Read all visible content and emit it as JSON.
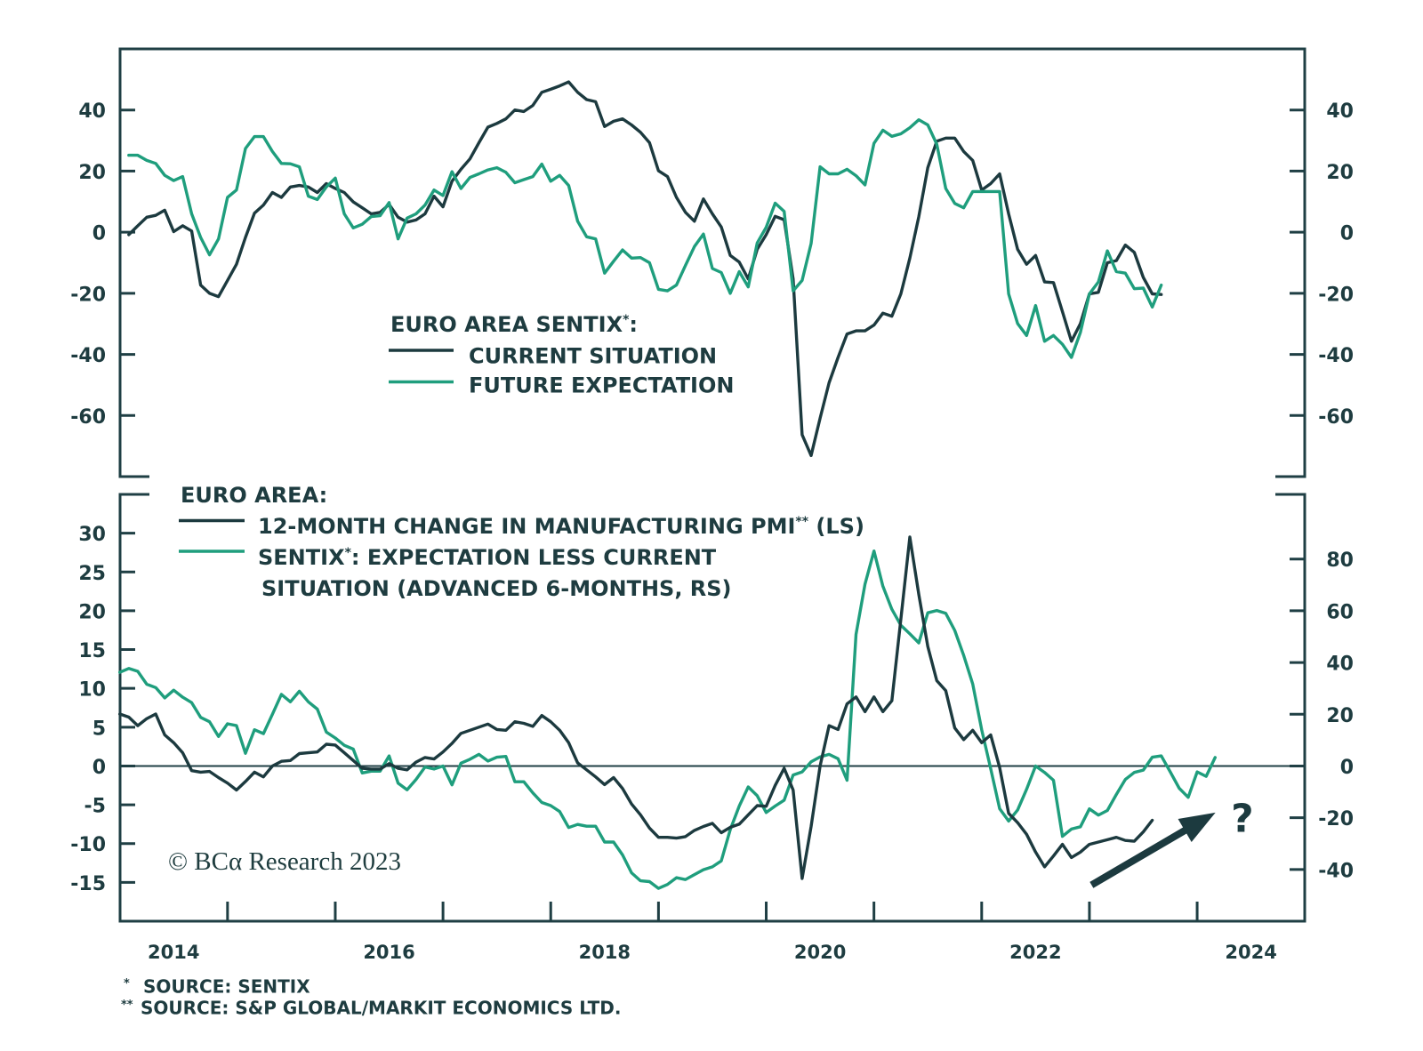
{
  "chart_data": [
    {
      "type": "line",
      "panel": "top",
      "title": {
        "main": "EURO AREA SENTIX",
        "mark": "*",
        "suffix": ":"
      },
      "frequency": "monthly",
      "legend_placement": "center",
      "y_left": {
        "range": [
          -80,
          60
        ],
        "ticks": [
          40,
          20,
          0,
          -20,
          -40,
          -60
        ]
      },
      "y_right": {
        "range": [
          -80,
          60
        ],
        "ticks": [
          40,
          20,
          0,
          -20,
          -40,
          -60
        ]
      },
      "series": [
        {
          "name": "CURRENT SITUATION",
          "color": "#1c3a3f",
          "axis": "left",
          "start": "2014-01",
          "values": [
            -0.8,
            2.1,
            4.9,
            5.5,
            7.2,
            0.2,
            2.1,
            0.4,
            -17.3,
            -20.0,
            -21.1,
            -15.8,
            -10.5,
            -1.7,
            6.2,
            8.9,
            13.0,
            11.4,
            14.8,
            15.3,
            14.8,
            13.0,
            15.9,
            14.3,
            13.0,
            9.9,
            8.0,
            6.0,
            6.5,
            9.1,
            4.9,
            3.3,
            4.0,
            6.0,
            11.8,
            8.3,
            16.7,
            20.6,
            24.0,
            29.3,
            34.4,
            35.6,
            37.1,
            40.0,
            39.5,
            41.5,
            45.8,
            46.8,
            47.9,
            49.2,
            45.8,
            43.4,
            42.7,
            34.6,
            36.3,
            37.1,
            35.1,
            32.7,
            29.3,
            20.1,
            18.2,
            11.4,
            6.5,
            3.6,
            10.9,
            6.0,
            1.7,
            -7.6,
            -9.8,
            -15.3,
            -5.6,
            -0.8,
            5.2,
            4.1,
            -15.3,
            -66.3,
            -73.1,
            -60.9,
            -49.3,
            -41.0,
            -33.3,
            -32.3,
            -32.3,
            -30.4,
            -26.5,
            -27.5,
            -20.2,
            -8.5,
            5.1,
            21.1,
            29.8,
            30.8,
            30.8,
            26.4,
            23.5,
            13.8,
            15.9,
            19.1,
            6.0,
            -5.6,
            -10.5,
            -7.6,
            -16.3,
            -16.5,
            -26.0,
            -35.7,
            -29.9,
            -20.2,
            -19.7,
            -10.0,
            -9.3,
            -4.2,
            -6.6,
            -14.8,
            -20.2,
            -20.4
          ]
        },
        {
          "name": "FUTURE EXPECTATION",
          "color": "#1f9e7d",
          "axis": "left",
          "start": "2014-01",
          "values": [
            25.2,
            25.2,
            23.5,
            22.5,
            18.6,
            16.9,
            18.2,
            6.0,
            -1.7,
            -7.4,
            -2.2,
            11.4,
            13.8,
            27.4,
            31.3,
            31.3,
            26.4,
            22.5,
            22.4,
            21.4,
            11.8,
            10.7,
            14.8,
            17.7,
            6.0,
            1.4,
            2.6,
            5.1,
            5.4,
            9.7,
            -2.2,
            4.6,
            6.0,
            8.9,
            13.8,
            12.0,
            19.8,
            14.3,
            17.9,
            19.1,
            20.4,
            21.1,
            19.6,
            16.2,
            17.2,
            18.2,
            22.3,
            16.7,
            18.6,
            15.3,
            3.6,
            -1.5,
            -2.2,
            -13.4,
            -9.5,
            -5.8,
            -8.5,
            -8.3,
            -10.0,
            -18.7,
            -19.2,
            -17.3,
            -10.9,
            -4.7,
            -0.6,
            -11.9,
            -13.2,
            -20.0,
            -12.9,
            -17.9,
            -3.5,
            1.6,
            9.5,
            6.8,
            -19.2,
            -15.8,
            -3.7,
            21.4,
            19.1,
            19.1,
            20.6,
            18.5,
            15.5,
            29.1,
            33.4,
            31.4,
            32.2,
            34.2,
            36.8,
            35.1,
            28.8,
            14.3,
            9.4,
            8.0,
            13.3,
            13.3,
            13.3,
            13.3,
            -20.2,
            -29.9,
            -33.8,
            -24.0,
            -35.7,
            -33.8,
            -36.7,
            -41.0,
            -32.8,
            -20.2,
            -16.3,
            -6.1,
            -12.9,
            -13.4,
            -18.5,
            -18.3,
            -24.5,
            -17.3
          ]
        }
      ]
    },
    {
      "type": "line",
      "panel": "bottom",
      "title": {
        "main": "EURO AREA:"
      },
      "frequency": "monthly",
      "legend_placement": "top-left",
      "reference_line": 0,
      "y_left": {
        "range": [
          -20,
          35
        ],
        "ticks": [
          30,
          25,
          20,
          15,
          10,
          5,
          0,
          -5,
          -10,
          -15
        ]
      },
      "y_right": {
        "range": [
          -60,
          105
        ],
        "ticks": [
          80,
          60,
          40,
          20,
          0,
          -20,
          -40
        ]
      },
      "series": [
        {
          "name": "12-MONTH CHANGE IN MANUFACTURING PMI** (LS)",
          "label": {
            "main": "12-MONTH CHANGE IN MANUFACTURING PMI",
            "mark": "**",
            "suffix": " (LS)"
          },
          "color": "#1c3a3f",
          "axis": "left",
          "start": "2013-12",
          "values": [
            6.7,
            6.3,
            5.2,
            6.1,
            6.7,
            4.0,
            3.0,
            1.7,
            -0.6,
            -0.8,
            -0.7,
            -1.5,
            -2.2,
            -3.1,
            -2.0,
            -0.8,
            -1.4,
            0.0,
            0.6,
            0.7,
            1.6,
            1.7,
            1.8,
            2.8,
            2.7,
            1.7,
            0.7,
            -0.3,
            -0.4,
            -0.4,
            0.3,
            -0.3,
            -0.5,
            0.5,
            1.1,
            0.9,
            1.8,
            2.9,
            4.2,
            4.6,
            5.0,
            5.4,
            4.7,
            4.6,
            5.7,
            5.5,
            5.1,
            6.5,
            5.7,
            4.6,
            3.0,
            0.4,
            -0.5,
            -1.4,
            -2.4,
            -1.5,
            -2.9,
            -4.9,
            -6.3,
            -8.0,
            -9.2,
            -9.2,
            -9.3,
            -9.1,
            -8.3,
            -7.8,
            -7.4,
            -8.6,
            -7.9,
            -7.5,
            -6.3,
            -5.1,
            -5.2,
            -2.5,
            -0.3,
            -3.1,
            -14.5,
            -7.8,
            0.0,
            5.2,
            4.7,
            8.0,
            8.9,
            7.0,
            8.9,
            7.0,
            8.4,
            18.9,
            29.5,
            22.1,
            15.4,
            11.0,
            9.7,
            4.9,
            3.4,
            4.6,
            3.0,
            4.0,
            -0.2,
            -6.1,
            -7.3,
            -8.8,
            -11.1,
            -13.0,
            -11.6,
            -10.1,
            -11.8,
            -11.1,
            -10.1,
            -9.8,
            -9.5,
            -9.2,
            -9.6,
            -9.7,
            -8.5,
            -7.0
          ]
        },
        {
          "name": "SENTIX*: EXPECTATION LESS CURRENT SITUATION (ADVANCED 6-MONTHS, RS)",
          "label": {
            "main": "SENTIX",
            "mark": "*",
            "suffix": ": EXPECTATION LESS CURRENT",
            "line2": "SITUATION (ADVANCED 6-MONTHS, RS)"
          },
          "color": "#1f9e7d",
          "axis": "right",
          "start": "2013-12",
          "values": [
            36.2,
            37.7,
            36.6,
            31.6,
            30.3,
            26.3,
            29.3,
            26.6,
            24.5,
            18.8,
            17.1,
            11.4,
            16.3,
            15.6,
            4.9,
            14.0,
            12.5,
            20.0,
            27.7,
            24.8,
            28.9,
            24.8,
            22.0,
            13.1,
            10.8,
            8.0,
            6.5,
            -2.7,
            -2.0,
            -2.0,
            3.9,
            -6.6,
            -9.2,
            -5.2,
            -0.4,
            -1.2,
            0.0,
            -7.3,
            1.1,
            2.6,
            4.5,
            1.9,
            3.4,
            3.7,
            -6.1,
            -6.1,
            -10.4,
            -14.1,
            -15.3,
            -17.6,
            -23.8,
            -22.6,
            -23.3,
            -23.3,
            -29.4,
            -29.4,
            -34.4,
            -41.3,
            -44.4,
            -44.7,
            -47.3,
            -45.8,
            -43.2,
            -43.9,
            -42.0,
            -40.1,
            -39.0,
            -36.7,
            -24.6,
            -15.5,
            -8.1,
            -11.5,
            -18.0,
            -15.5,
            -13.2,
            -3.5,
            -2.3,
            1.6,
            3.5,
            4.5,
            2.8,
            -5.5,
            50.9,
            70.3,
            83.1,
            69.5,
            60.6,
            54.4,
            51.1,
            47.6,
            59.2,
            60.1,
            59.0,
            52.4,
            42.7,
            31.7,
            14.0,
            -1.0,
            -16.5,
            -21.3,
            -17.0,
            -9.0,
            0.0,
            -2.5,
            -5.5,
            -27.2,
            -24.4,
            -23.5,
            -16.6,
            -19.0,
            -17.2,
            -11.0,
            -5.2,
            -2.5,
            -1.6,
            3.4,
            3.9,
            -2.3,
            -8.6,
            -12.1,
            -2.3,
            -4.0,
            3.3
          ]
        }
      ],
      "annotations": [
        {
          "type": "arrow",
          "axis": "right",
          "from": [
            2023.02,
            -46
          ],
          "to": [
            2024.17,
            -18
          ]
        },
        {
          "type": "text",
          "axis": "right",
          "text": "?",
          "at": [
            2024.42,
            -20
          ]
        }
      ]
    }
  ],
  "x_axis": {
    "range": [
      2014,
      2025
    ],
    "tick_years": [
      2015,
      2016,
      2017,
      2018,
      2019,
      2020,
      2021,
      2022,
      2023,
      2024
    ],
    "labels": [
      "2014",
      "2016",
      "2018",
      "2020",
      "2022",
      "2024"
    ]
  },
  "watermark": {
    "symbol": "©",
    "brand": "BCα",
    "text": "Research 2023"
  },
  "footnotes": [
    {
      "mark": "*",
      "text": "SOURCE: SENTIX"
    },
    {
      "mark": "**",
      "text": "SOURCE: S&P GLOBAL/MARKIT ECONOMICS LTD."
    }
  ],
  "colors": {
    "text": "#1e3c40",
    "axis": "#1f3f44",
    "dark_series": "#1c3a3f",
    "green_series": "#1f9e7d"
  }
}
